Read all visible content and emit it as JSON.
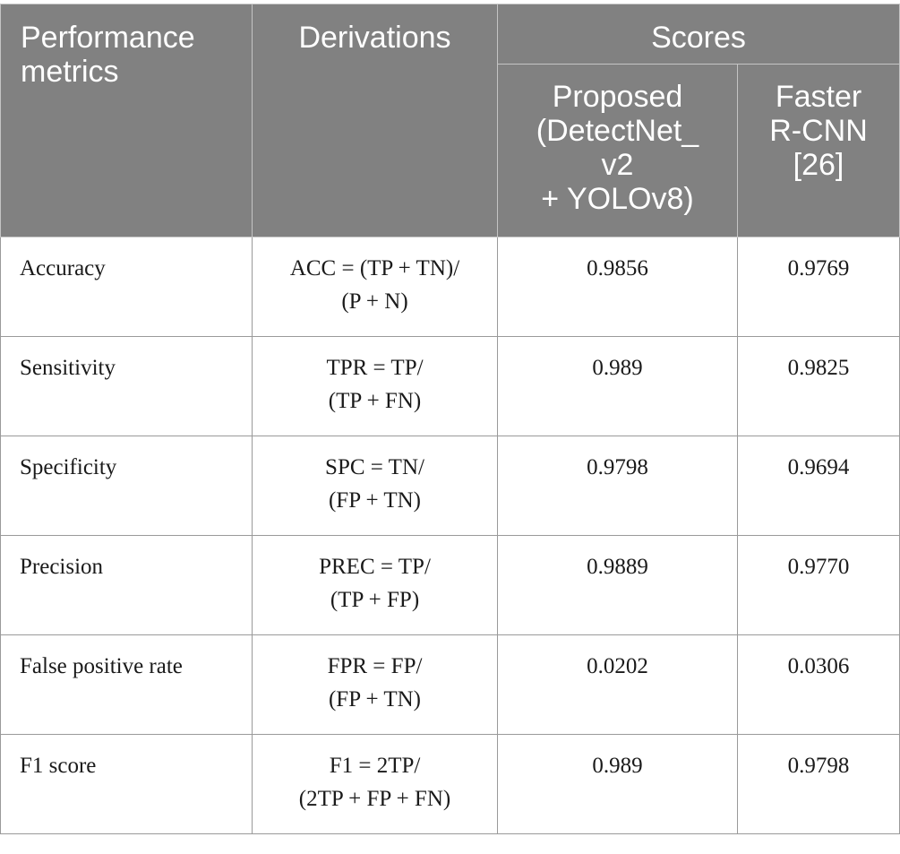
{
  "header": {
    "metric_line1": "Performance",
    "metric_line2": "metrics",
    "derivations": "Derivations",
    "scores": "Scores",
    "proposed": [
      "Proposed",
      "(DetectNet_",
      "v2",
      "+ YOLOv8)"
    ],
    "faster": [
      "Faster",
      "R-CNN",
      "[26]"
    ]
  },
  "rows": [
    {
      "metric": "Accuracy",
      "deriv1": "ACC = (TP + TN)/",
      "deriv2": "(P + N)",
      "proposed": "0.9856",
      "faster": "0.9769"
    },
    {
      "metric": "Sensitivity",
      "deriv1": "TPR = TP/",
      "deriv2": "(TP + FN)",
      "proposed": "0.989",
      "faster": "0.9825"
    },
    {
      "metric": "Specificity",
      "deriv1": "SPC = TN/",
      "deriv2": "(FP + TN)",
      "proposed": "0.9798",
      "faster": "0.9694"
    },
    {
      "metric": "Precision",
      "deriv1": "PREC = TP/",
      "deriv2": "(TP + FP)",
      "proposed": "0.9889",
      "faster": "0.9770"
    },
    {
      "metric": "False positive rate",
      "deriv1": "FPR = FP/",
      "deriv2": "(FP + TN)",
      "proposed": "0.0202",
      "faster": "0.0306"
    },
    {
      "metric": "F1 score",
      "deriv1": "F1 = 2TP/",
      "deriv2": "(2TP + FP + FN)",
      "proposed": "0.989",
      "faster": "0.9798"
    }
  ]
}
